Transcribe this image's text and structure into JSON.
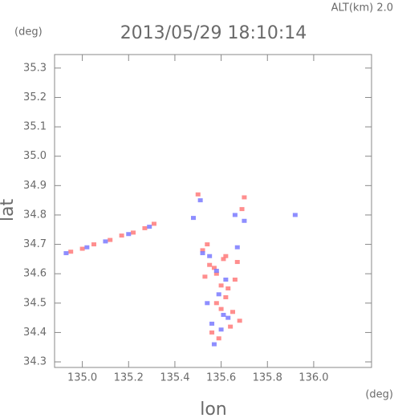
{
  "chart_data": {
    "type": "scatter",
    "title": "2013/05/29 18:10:14",
    "subtitle": "ALT(km) 2.0",
    "x_label": "lon",
    "y_label": "lat",
    "x_unit": "(deg)",
    "y_unit": "(deg)",
    "xlim": [
      134.88,
      136.25
    ],
    "ylim": [
      34.281,
      35.346
    ],
    "xticks": [
      {
        "value": 135,
        "label": "135.0"
      },
      135.2,
      135.4,
      135.6,
      135.8,
      {
        "value": 136,
        "label": "136.0"
      }
    ],
    "yticks": [
      34.3,
      34.4,
      34.5,
      34.6,
      34.7,
      34.8,
      34.9,
      {
        "value": 35,
        "label": "35.0"
      },
      35.1,
      35.2,
      35.3
    ],
    "grid": false,
    "series": [
      {
        "color": "#ff7a7a",
        "x": [
          134.95,
          135.0,
          135.05,
          135.12,
          135.17,
          135.22,
          135.27,
          135.31,
          135.5,
          135.52,
          135.55,
          135.58,
          135.6,
          135.62,
          135.65,
          135.68,
          135.7,
          135.56,
          135.59,
          135.63,
          135.61,
          135.57,
          135.66,
          135.54,
          135.6,
          135.64,
          135.58,
          135.62,
          135.67,
          135.53,
          135.69
        ],
        "values": [
          34.675,
          34.685,
          34.7,
          34.715,
          34.73,
          34.74,
          34.755,
          34.77,
          34.87,
          34.68,
          34.63,
          34.6,
          34.56,
          34.52,
          34.47,
          34.44,
          34.86,
          34.4,
          34.38,
          34.55,
          34.65,
          34.62,
          34.58,
          34.7,
          34.48,
          34.42,
          34.5,
          34.66,
          34.64,
          34.59,
          34.82
        ]
      },
      {
        "color": "#7a7aff",
        "x": [
          134.93,
          135.02,
          135.1,
          135.2,
          135.29,
          135.51,
          135.55,
          135.58,
          135.62,
          135.66,
          135.7,
          135.57,
          135.6,
          135.54,
          135.63,
          135.67,
          135.59,
          135.61,
          135.52,
          135.92,
          135.48,
          135.56
        ],
        "values": [
          34.67,
          34.69,
          34.71,
          34.735,
          34.76,
          34.85,
          34.66,
          34.61,
          34.58,
          34.8,
          34.78,
          34.36,
          34.41,
          34.5,
          34.45,
          34.69,
          34.53,
          34.46,
          34.67,
          34.8,
          34.79,
          34.43
        ]
      }
    ]
  }
}
